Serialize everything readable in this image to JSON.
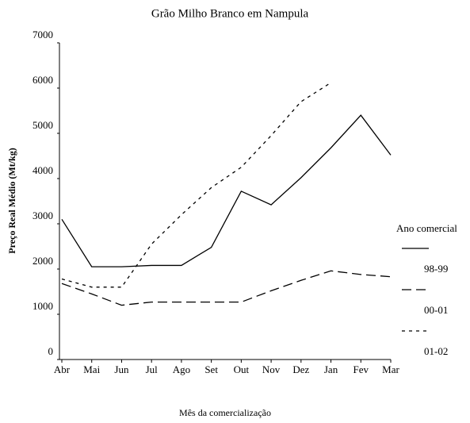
{
  "chart_data": {
    "type": "line",
    "title": "Grão Milho Branco em Nampula",
    "x_label": "Mês da comercialização",
    "y_label": "Preço Real Médio (Mt/kg)",
    "legend_title": "Ano comercial",
    "categories": [
      "Abr",
      "Mai",
      "Jun",
      "Jul",
      "Ago",
      "Set",
      "Out",
      "Nov",
      "Dez",
      "Jan",
      "Fev",
      "Mar"
    ],
    "series": [
      {
        "name": "98-99",
        "color": "#000000",
        "dash": "solid",
        "values": [
          3100,
          2050,
          2050,
          2080,
          2080,
          2480,
          3720,
          3420,
          4020,
          4680,
          5400,
          4520
        ]
      },
      {
        "name": "00-01",
        "color": "#000000",
        "dash": "dashed",
        "values": [
          1680,
          1450,
          1200,
          1270,
          1270,
          1270,
          1270,
          1520,
          1750,
          1960,
          1880,
          1830
        ]
      },
      {
        "name": "01-02",
        "color": "#000000",
        "dash": "dotted",
        "values": [
          1780,
          1600,
          1600,
          2550,
          3200,
          3800,
          4250,
          4950,
          5700,
          6120,
          null,
          null
        ]
      }
    ],
    "ylim": [
      0,
      7000
    ],
    "yticks": [
      0,
      1000,
      2000,
      3000,
      4000,
      5000,
      6000,
      7000
    ],
    "legend": "right"
  }
}
